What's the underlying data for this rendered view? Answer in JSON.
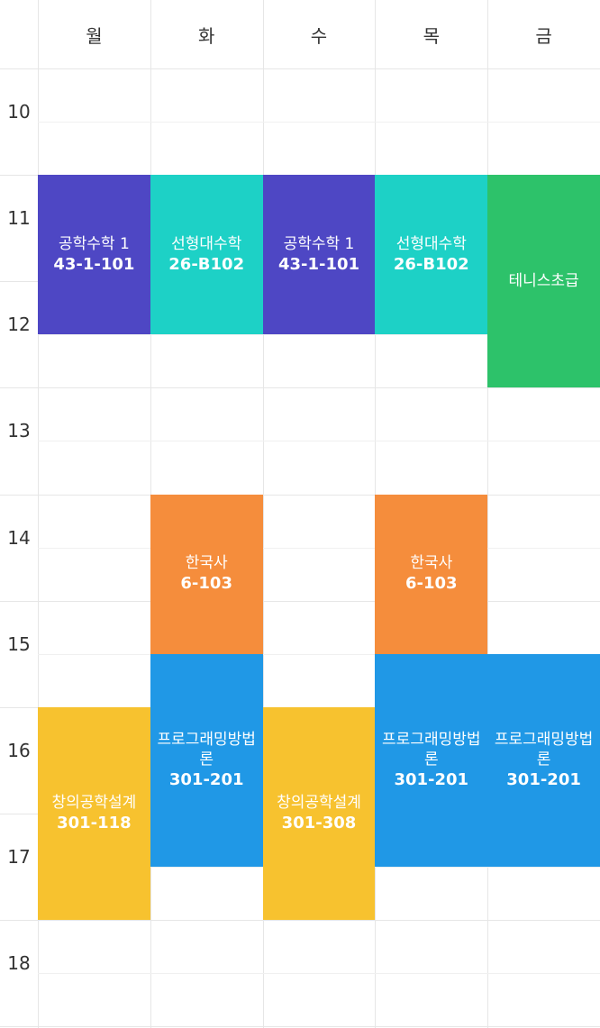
{
  "days": [
    "월",
    "화",
    "수",
    "목",
    "금"
  ],
  "hours": [
    "10",
    "11",
    "12",
    "13",
    "14",
    "15",
    "16",
    "17",
    "18"
  ],
  "colors": {
    "purple": "#4e47c4",
    "teal": "#1dd1c6",
    "green": "#2dc26a",
    "orange": "#f58d3c",
    "blue": "#2098e6",
    "yellow": "#f7c22f",
    "grid": "#e6e6e6"
  },
  "courses": [
    {
      "day": 0,
      "start": 11,
      "end": 12.5,
      "name": "공학수학 1",
      "room": "43-1-101",
      "color": "purple"
    },
    {
      "day": 1,
      "start": 11,
      "end": 12.5,
      "name": "선형대수학",
      "room": "26-B102",
      "color": "teal"
    },
    {
      "day": 2,
      "start": 11,
      "end": 12.5,
      "name": "공학수학 1",
      "room": "43-1-101",
      "color": "purple"
    },
    {
      "day": 3,
      "start": 11,
      "end": 12.5,
      "name": "선형대수학",
      "room": "26-B102",
      "color": "teal"
    },
    {
      "day": 4,
      "start": 11,
      "end": 13,
      "name": "테니스초급",
      "room": "",
      "color": "green"
    },
    {
      "day": 1,
      "start": 14,
      "end": 15.5,
      "name": "한국사",
      "room": "6-103",
      "color": "orange"
    },
    {
      "day": 3,
      "start": 14,
      "end": 15.5,
      "name": "한국사",
      "room": "6-103",
      "color": "orange"
    },
    {
      "day": 1,
      "start": 15.5,
      "end": 17.5,
      "name": "프로그래밍방법론",
      "room": "301-201",
      "color": "blue"
    },
    {
      "day": 3,
      "start": 15.5,
      "end": 17.5,
      "name": "프로그래밍방법론",
      "room": "301-201",
      "color": "blue"
    },
    {
      "day": 4,
      "start": 15.5,
      "end": 17.5,
      "name": "프로그래밍방법론",
      "room": "301-201",
      "color": "blue"
    },
    {
      "day": 0,
      "start": 16,
      "end": 18,
      "name": "창의공학설계",
      "room": "301-118",
      "color": "yellow"
    },
    {
      "day": 2,
      "start": 16,
      "end": 18,
      "name": "창의공학설계",
      "room": "301-308",
      "color": "yellow"
    }
  ]
}
